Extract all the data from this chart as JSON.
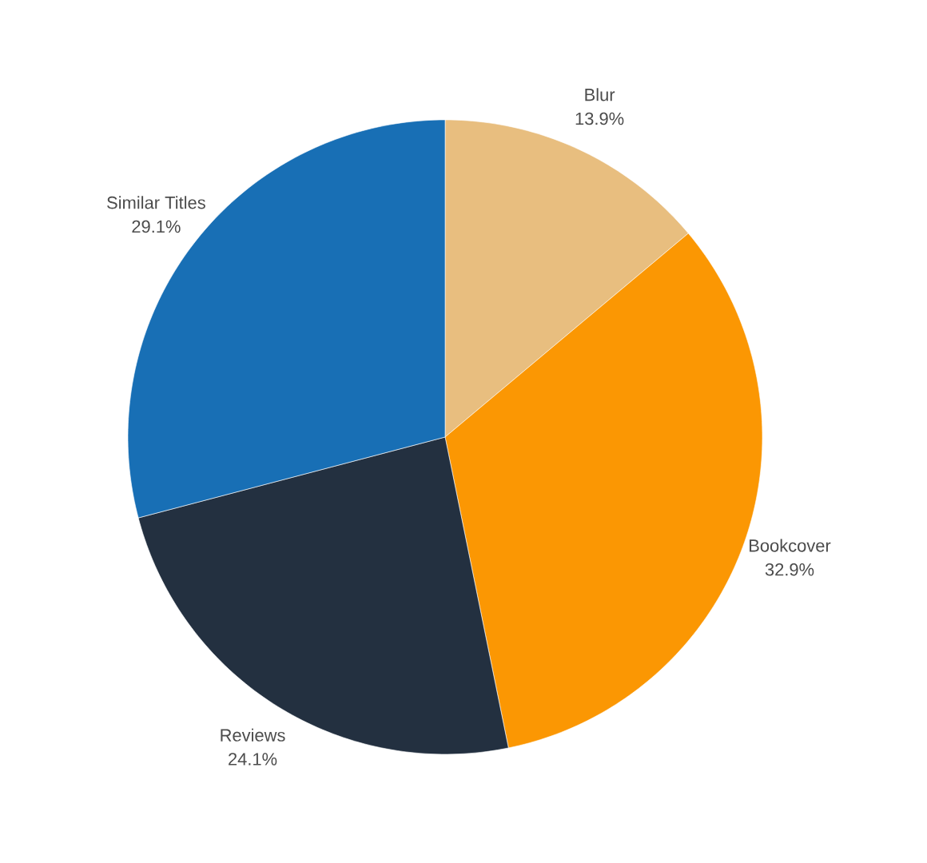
{
  "chart_data": {
    "type": "pie",
    "categories": [
      "Blur",
      "Bookcover",
      "Reviews",
      "Similar Titles"
    ],
    "values": [
      13.9,
      32.9,
      24.1,
      29.1
    ],
    "value_labels": [
      "13.9%",
      "32.9%",
      "24.1%",
      "29.1%"
    ],
    "colors": [
      "#e8be7f",
      "#fb9703",
      "#233040",
      "#186fb5"
    ]
  }
}
